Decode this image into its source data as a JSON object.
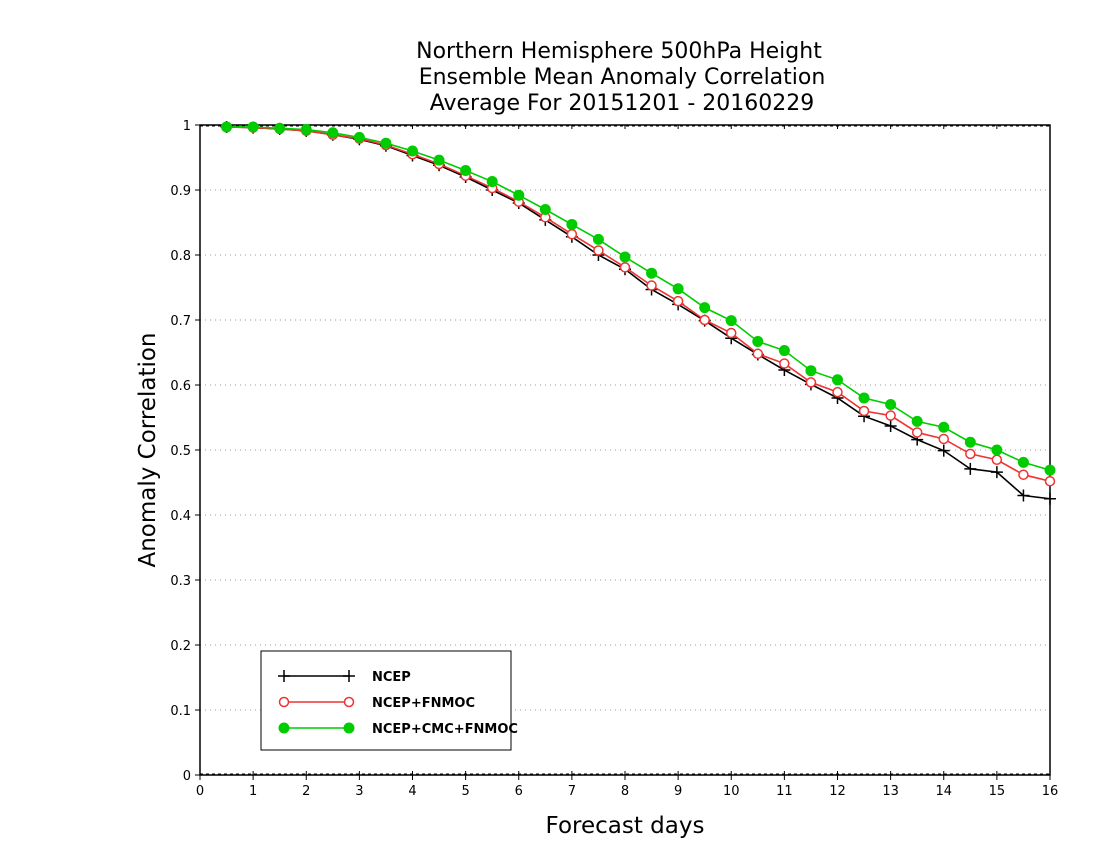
{
  "chart_data": {
    "type": "line",
    "title": [
      "Northern Hemisphere 500hPa Height",
      "Ensemble Mean Anomaly Correlation",
      "Average For 20151201 - 20160229"
    ],
    "xlabel": "Forecast days",
    "ylabel": "Anomaly Correlation",
    "xlim": [
      0,
      16
    ],
    "ylim": [
      0,
      1
    ],
    "xticks": [
      0,
      1,
      2,
      3,
      4,
      5,
      6,
      7,
      8,
      9,
      10,
      11,
      12,
      13,
      14,
      15,
      16
    ],
    "yticks": [
      0,
      0.1,
      0.2,
      0.3,
      0.4,
      0.5,
      0.6,
      0.7,
      0.8,
      0.9,
      1
    ],
    "ytick_labels": [
      "0",
      "0.1",
      "0.2",
      "0.3",
      "0.4",
      "0.5",
      "0.6",
      "0.7",
      "0.8",
      "0.9",
      "1"
    ],
    "grid": "horizontal-dotted",
    "legend_position": "bottom-left",
    "x": [
      0.5,
      1,
      1.5,
      2,
      2.5,
      3,
      3.5,
      4,
      4.5,
      5,
      5.5,
      6,
      6.5,
      7,
      7.5,
      8,
      8.5,
      9,
      9.5,
      10,
      10.5,
      11,
      11.5,
      12,
      12.5,
      13,
      13.5,
      14,
      14.5,
      15,
      15.5,
      16
    ],
    "series": [
      {
        "name": "NCEP",
        "color": "#000000",
        "marker": "plus",
        "values": [
          0.997,
          0.996,
          0.994,
          0.991,
          0.985,
          0.978,
          0.968,
          0.953,
          0.938,
          0.92,
          0.9,
          0.88,
          0.854,
          0.828,
          0.8,
          0.778,
          0.747,
          0.724,
          0.699,
          0.672,
          0.647,
          0.623,
          0.601,
          0.58,
          0.552,
          0.537,
          0.516,
          0.499,
          0.471,
          0.466,
          0.43,
          0.425
        ]
      },
      {
        "name": "NCEP+FNMOC",
        "color": "#ee3333",
        "marker": "open-circle",
        "values": [
          0.997,
          0.996,
          0.994,
          0.991,
          0.985,
          0.979,
          0.969,
          0.955,
          0.94,
          0.922,
          0.903,
          0.882,
          0.858,
          0.832,
          0.807,
          0.781,
          0.753,
          0.729,
          0.7,
          0.68,
          0.648,
          0.633,
          0.604,
          0.589,
          0.56,
          0.553,
          0.527,
          0.517,
          0.494,
          0.485,
          0.462,
          0.452
        ]
      },
      {
        "name": "NCEP+CMC+FNMOC",
        "color": "#00cc00",
        "marker": "filled-circle",
        "values": [
          0.997,
          0.997,
          0.995,
          0.993,
          0.988,
          0.981,
          0.972,
          0.96,
          0.946,
          0.93,
          0.913,
          0.892,
          0.87,
          0.847,
          0.824,
          0.797,
          0.772,
          0.748,
          0.719,
          0.699,
          0.667,
          0.653,
          0.622,
          0.608,
          0.58,
          0.57,
          0.544,
          0.535,
          0.512,
          0.5,
          0.481,
          0.469
        ]
      }
    ]
  }
}
